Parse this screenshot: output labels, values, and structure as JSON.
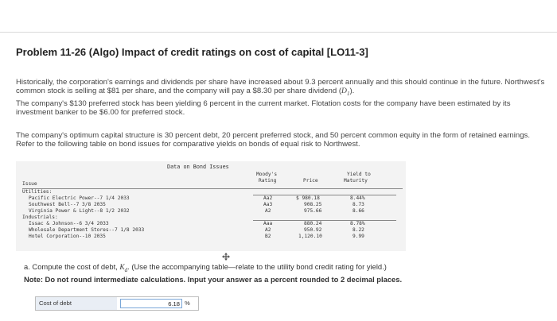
{
  "problem": {
    "title": "Problem 11-26 (Algo) Impact of credit ratings on cost of capital [LO11-3]",
    "para1_before_d1": "Historically, the corporation's earnings and dividends per share have increased about 9.3 percent annually and this should continue in the future. Northwest's common stock is selling at $81 per share, and the company will pay a $8.30 per share dividend (",
    "d1_symbol": "D",
    "d1_subscript": "1",
    "para1_after_d1": ").",
    "para1_line2": "The company's $130 preferred stock has been yielding 6 percent in the current market. Flotation costs for the company have been estimated by its investment banker to be $6.00 for preferred stock.",
    "para2": "The company's optimum capital structure is 30 percent debt, 20 percent preferred stock, and 50 percent common equity in the form of retained earnings. Refer to the following table on bond issues for comparative yields on bonds of equal risk to Northwest."
  },
  "bond_table": {
    "caption": "Data on Bond Issues",
    "headers": {
      "issue": "Issue",
      "rating_line1": "Moody's",
      "rating_line2": "Rating",
      "price": "Price",
      "yield_line1": "Yield to",
      "yield_line2": "Maturity"
    },
    "groups": [
      {
        "name": "Utilities:",
        "rows": [
          {
            "issue": "Pacific Electric Power--7 1/4 2033",
            "rating": "Aa2",
            "price": "$ 980.18",
            "yield": "8.44%"
          },
          {
            "issue": "Southwest Bell--7 3/8 2035",
            "rating": "Aa3",
            "price": "908.25",
            "yield": "8.73"
          },
          {
            "issue": "Virginia Power & Light--8 1/2 2032",
            "rating": "A2",
            "price": "975.66",
            "yield": "8.66"
          }
        ]
      },
      {
        "name": "Industrials:",
        "rows": [
          {
            "issue": "Issac & Johnson--6 3/4 2033",
            "rating": "Aaa",
            "price": "880.24",
            "yield": "8.78%"
          },
          {
            "issue": "Wholesale Department Stores--7 1/8 2033",
            "rating": "A2",
            "price": "950.92",
            "yield": "8.22"
          },
          {
            "issue": "Hotel Corporation--10 2035",
            "rating": "B2",
            "price": "1,120.10",
            "yield": "9.99"
          }
        ]
      }
    ]
  },
  "question_a": {
    "prefix": "a. Compute the cost of debt, ",
    "kd_symbol": "K",
    "kd_subscript": "d",
    "suffix": ". (Use the accompanying table—relate to the utility bond credit rating for yield.)",
    "note": "Note: Do not round intermediate calculations. Input your answer as a percent rounded to 2 decimal places."
  },
  "answer": {
    "label": "Cost of debt",
    "value": "6.18",
    "unit": "%"
  }
}
